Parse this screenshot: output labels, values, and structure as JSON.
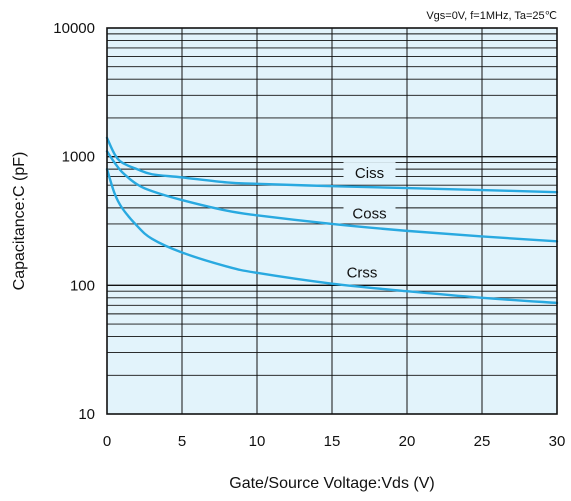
{
  "chart_data": {
    "type": "line",
    "title": "",
    "conditions_note": "Vgs=0V, f=1MHz, Ta=25℃",
    "xlabel": "Gate/Source Voltage:Vds  (V)",
    "ylabel": "Capacitance:C  (pF)",
    "x_scale": "linear",
    "y_scale": "log",
    "xlim": [
      0,
      30
    ],
    "ylim": [
      10,
      10000
    ],
    "x_ticks": [
      0,
      5,
      10,
      15,
      20,
      25,
      30
    ],
    "x_tick_labels": [
      "0",
      "5",
      "10",
      "15",
      "20",
      "25",
      "30"
    ],
    "y_ticks": [
      10,
      100,
      1000,
      10000
    ],
    "y_tick_labels": [
      "10",
      "100",
      "1000",
      "10000"
    ],
    "grid": true,
    "colors": {
      "plot_background": "#e2f3fb",
      "grid": "#111111",
      "series": "#29a9e0"
    },
    "series": [
      {
        "name": "Ciss",
        "x": [
          0,
          0.5,
          1,
          2,
          3,
          5,
          8,
          10,
          15,
          20,
          25,
          30
        ],
        "values": [
          1400,
          1050,
          900,
          800,
          730,
          690,
          630,
          615,
          590,
          570,
          550,
          530
        ]
      },
      {
        "name": "Coss",
        "x": [
          0,
          0.5,
          1,
          2,
          3,
          5,
          8,
          10,
          15,
          20,
          25,
          30
        ],
        "values": [
          1100,
          900,
          760,
          610,
          540,
          460,
          380,
          350,
          300,
          265,
          240,
          220
        ]
      },
      {
        "name": "Crss",
        "x": [
          0,
          0.5,
          1,
          2,
          3,
          5,
          8,
          10,
          15,
          20,
          25,
          30
        ],
        "values": [
          800,
          520,
          400,
          290,
          230,
          180,
          140,
          125,
          103,
          90,
          80,
          73
        ]
      }
    ]
  }
}
